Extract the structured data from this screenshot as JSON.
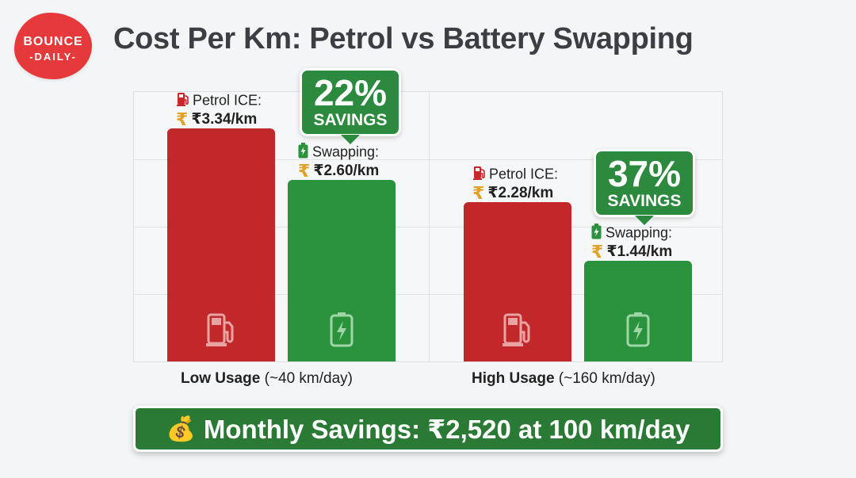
{
  "logo": {
    "line1": "BOUNCE",
    "line2": "-DAILY-"
  },
  "title": "Cost Per Km: Petrol vs Battery Swapping",
  "chart_data": {
    "type": "bar",
    "categories": [
      "Low Usage",
      "High Usage"
    ],
    "category_notes": [
      "(~40 km/day)",
      "(~160 km/day)"
    ],
    "series": [
      {
        "name": "Petrol ICE:",
        "values": [
          3.34,
          2.28
        ],
        "value_labels": [
          "₹3.34/km",
          "₹2.28/km"
        ],
        "color": "#c0282a"
      },
      {
        "name": "Swapping:",
        "values": [
          2.6,
          1.44
        ],
        "value_labels": [
          "₹2.60/km",
          "₹1.44/km"
        ],
        "color": "#2a913c"
      }
    ],
    "savings_badges": [
      {
        "pct": "22%",
        "label": "SAVINGS"
      },
      {
        "pct": "37%",
        "label": "SAVINGS"
      }
    ],
    "ylim": [
      0,
      4
    ],
    "grid": true
  },
  "banner": {
    "icon": "money-bag-icon",
    "emoji": "💰",
    "text": "Monthly Savings: ₹2,520 at 100 km/day"
  },
  "colors": {
    "accent_red": "#e5393b",
    "petrol": "#c0282a",
    "swap": "#2a913c",
    "banner": "#2a7a35",
    "rupee": "#e0a225"
  }
}
